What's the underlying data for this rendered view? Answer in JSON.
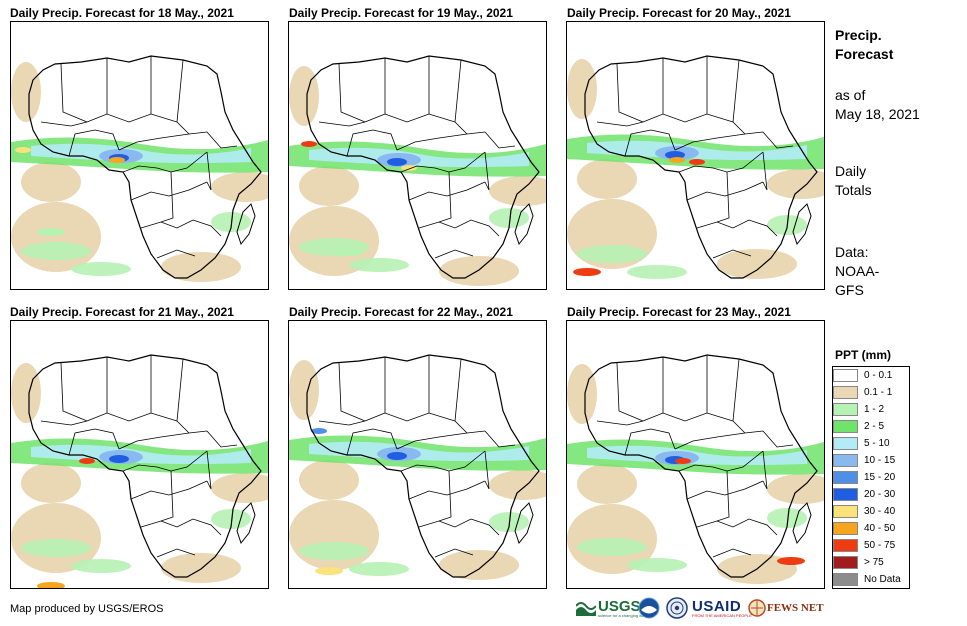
{
  "panels": [
    {
      "title": "Daily Precip. Forecast for 18 May., 2021"
    },
    {
      "title": "Daily Precip. Forecast for 19 May., 2021"
    },
    {
      "title": "Daily Precip. Forecast for 20 May., 2021"
    },
    {
      "title": "Daily Precip. Forecast for 21 May., 2021"
    },
    {
      "title": "Daily Precip. Forecast for 22 May., 2021"
    },
    {
      "title": "Daily Precip. Forecast for 23 May., 2021"
    }
  ],
  "side": {
    "heading_line1": "Precip.",
    "heading_line2": "Forecast",
    "asof_line1": "as of",
    "asof_line2": "May 18, 2021",
    "daily_line1": "Daily",
    "daily_line2": "Totals",
    "data_line1": "Data:",
    "data_line2": "NOAA-",
    "data_line3": "GFS"
  },
  "legend": {
    "title": "PPT (mm)",
    "items": [
      {
        "label": "0 - 0.1",
        "color": "#ffffff"
      },
      {
        "label": "0.1 - 1",
        "color": "#ead7b4"
      },
      {
        "label": "1 - 2",
        "color": "#b6f2b2"
      },
      {
        "label": "2 - 5",
        "color": "#6fe36a"
      },
      {
        "label": "5 - 10",
        "color": "#b3ecf7"
      },
      {
        "label": "10 - 15",
        "color": "#8ab9ef"
      },
      {
        "label": "15 - 20",
        "color": "#4f8fe6"
      },
      {
        "label": "20 - 30",
        "color": "#1f5ee0"
      },
      {
        "label": "30 - 40",
        "color": "#fbe27a"
      },
      {
        "label": "40 - 50",
        "color": "#f7a51e"
      },
      {
        "label": "50 - 75",
        "color": "#ef3b12"
      },
      {
        "label": "> 75",
        "color": "#a21c1c"
      },
      {
        "label": "No Data",
        "color": "#8c8c8c"
      }
    ]
  },
  "credit": "Map produced by USGS/EROS",
  "logos": {
    "usgs": "USGS",
    "usgs_tagline": "science for a changing world",
    "usaid": "USAID",
    "usaid_tagline": "FROM THE AMERICAN PEOPLE",
    "fewsnet": "FEWS NET"
  }
}
